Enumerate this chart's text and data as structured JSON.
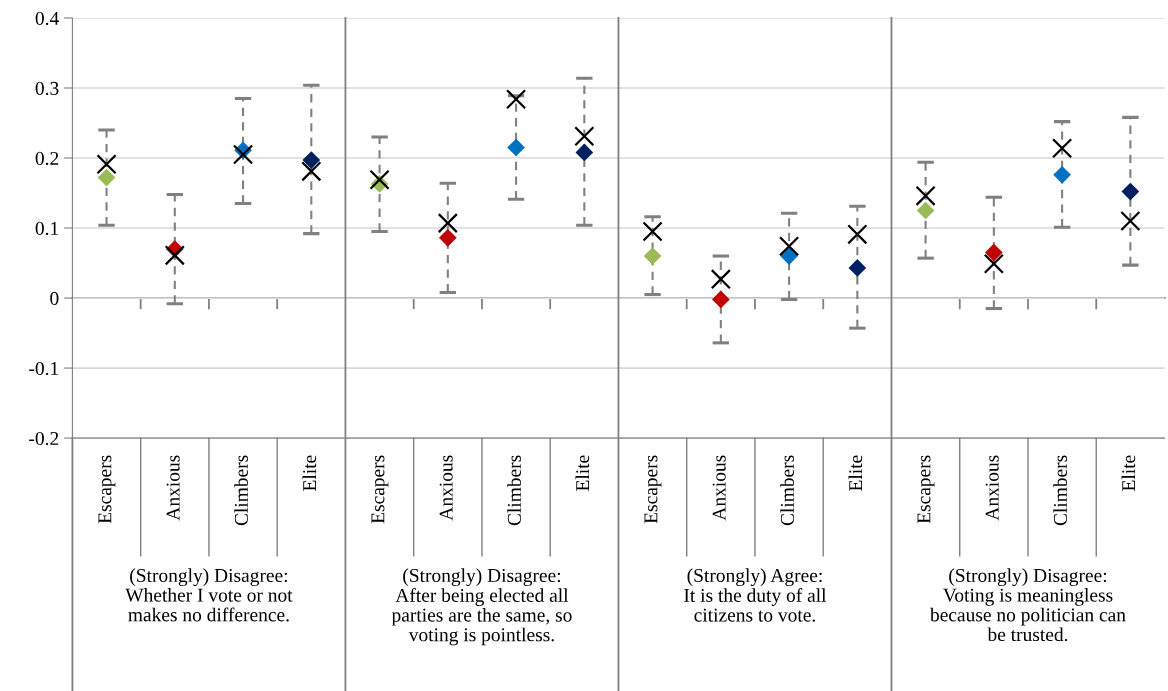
{
  "chart_data": {
    "type": "scatter",
    "categories": [
      "Escapers",
      "Anxious",
      "Climbers",
      "Elite",
      "Escapers",
      "Anxious",
      "Climbers",
      "Elite",
      "Escapers",
      "Anxious",
      "Climbers",
      "Elite",
      "Escapers",
      "Anxious",
      "Climbers",
      "Elite"
    ],
    "series": [
      {
        "marker": "diamond",
        "colors": [
          "#9bbb59",
          "#c00000",
          "#0070c0",
          "#002060",
          "#9bbb59",
          "#c00000",
          "#0070c0",
          "#002060",
          "#9bbb59",
          "#c00000",
          "#0070c0",
          "#002060",
          "#9bbb59",
          "#c00000",
          "#0070c0",
          "#002060"
        ],
        "values": [
          0.172,
          0.07,
          0.211,
          0.197,
          0.163,
          0.086,
          0.215,
          0.208,
          0.06,
          -0.002,
          0.06,
          0.043,
          0.125,
          0.065,
          0.176,
          0.152
        ],
        "errors": [
          [
            0.104,
            0.24
          ],
          [
            -0.008,
            0.148
          ],
          [
            0.135,
            0.285
          ],
          [
            0.092,
            0.304
          ],
          [
            0.095,
            0.23
          ],
          [
            0.008,
            0.164
          ],
          [
            0.141,
            0.289
          ],
          [
            0.104,
            0.314
          ],
          [
            0.005,
            0.116
          ],
          [
            -0.064,
            0.06
          ],
          [
            -0.002,
            0.121
          ],
          [
            -0.043,
            0.131
          ],
          [
            0.057,
            0.194
          ],
          [
            -0.015,
            0.144
          ],
          [
            0.101,
            0.252
          ],
          [
            0.047,
            0.258
          ]
        ]
      },
      {
        "marker": "cross",
        "color": "#000000",
        "values": [
          0.191,
          0.061,
          0.205,
          0.181,
          0.169,
          0.107,
          0.284,
          0.231,
          0.095,
          0.027,
          0.074,
          0.091,
          0.146,
          0.049,
          0.214,
          0.11
        ]
      }
    ],
    "ylim": [
      -0.2,
      0.4
    ],
    "yticks": [
      {
        "value": -0.2,
        "label": "-0.2"
      },
      {
        "value": -0.1,
        "label": "-0.1"
      },
      0,
      0.1,
      0.2,
      0.3,
      0.4
    ],
    "grid": "y",
    "legend": false,
    "annotations": [
      "(Strongly) Disagree:\nWhether I vote or not\nmakes no difference.",
      "(Strongly) Disagree:\nAfter being elected all\nparties are the same, so\nvoting is pointless.",
      "(Strongly) Agree:\nIt is the duty of all\ncitizens to vote.",
      "(Strongly) Disagree:\nVoting is meaningless\nbecause no politician can\nbe trusted."
    ]
  }
}
